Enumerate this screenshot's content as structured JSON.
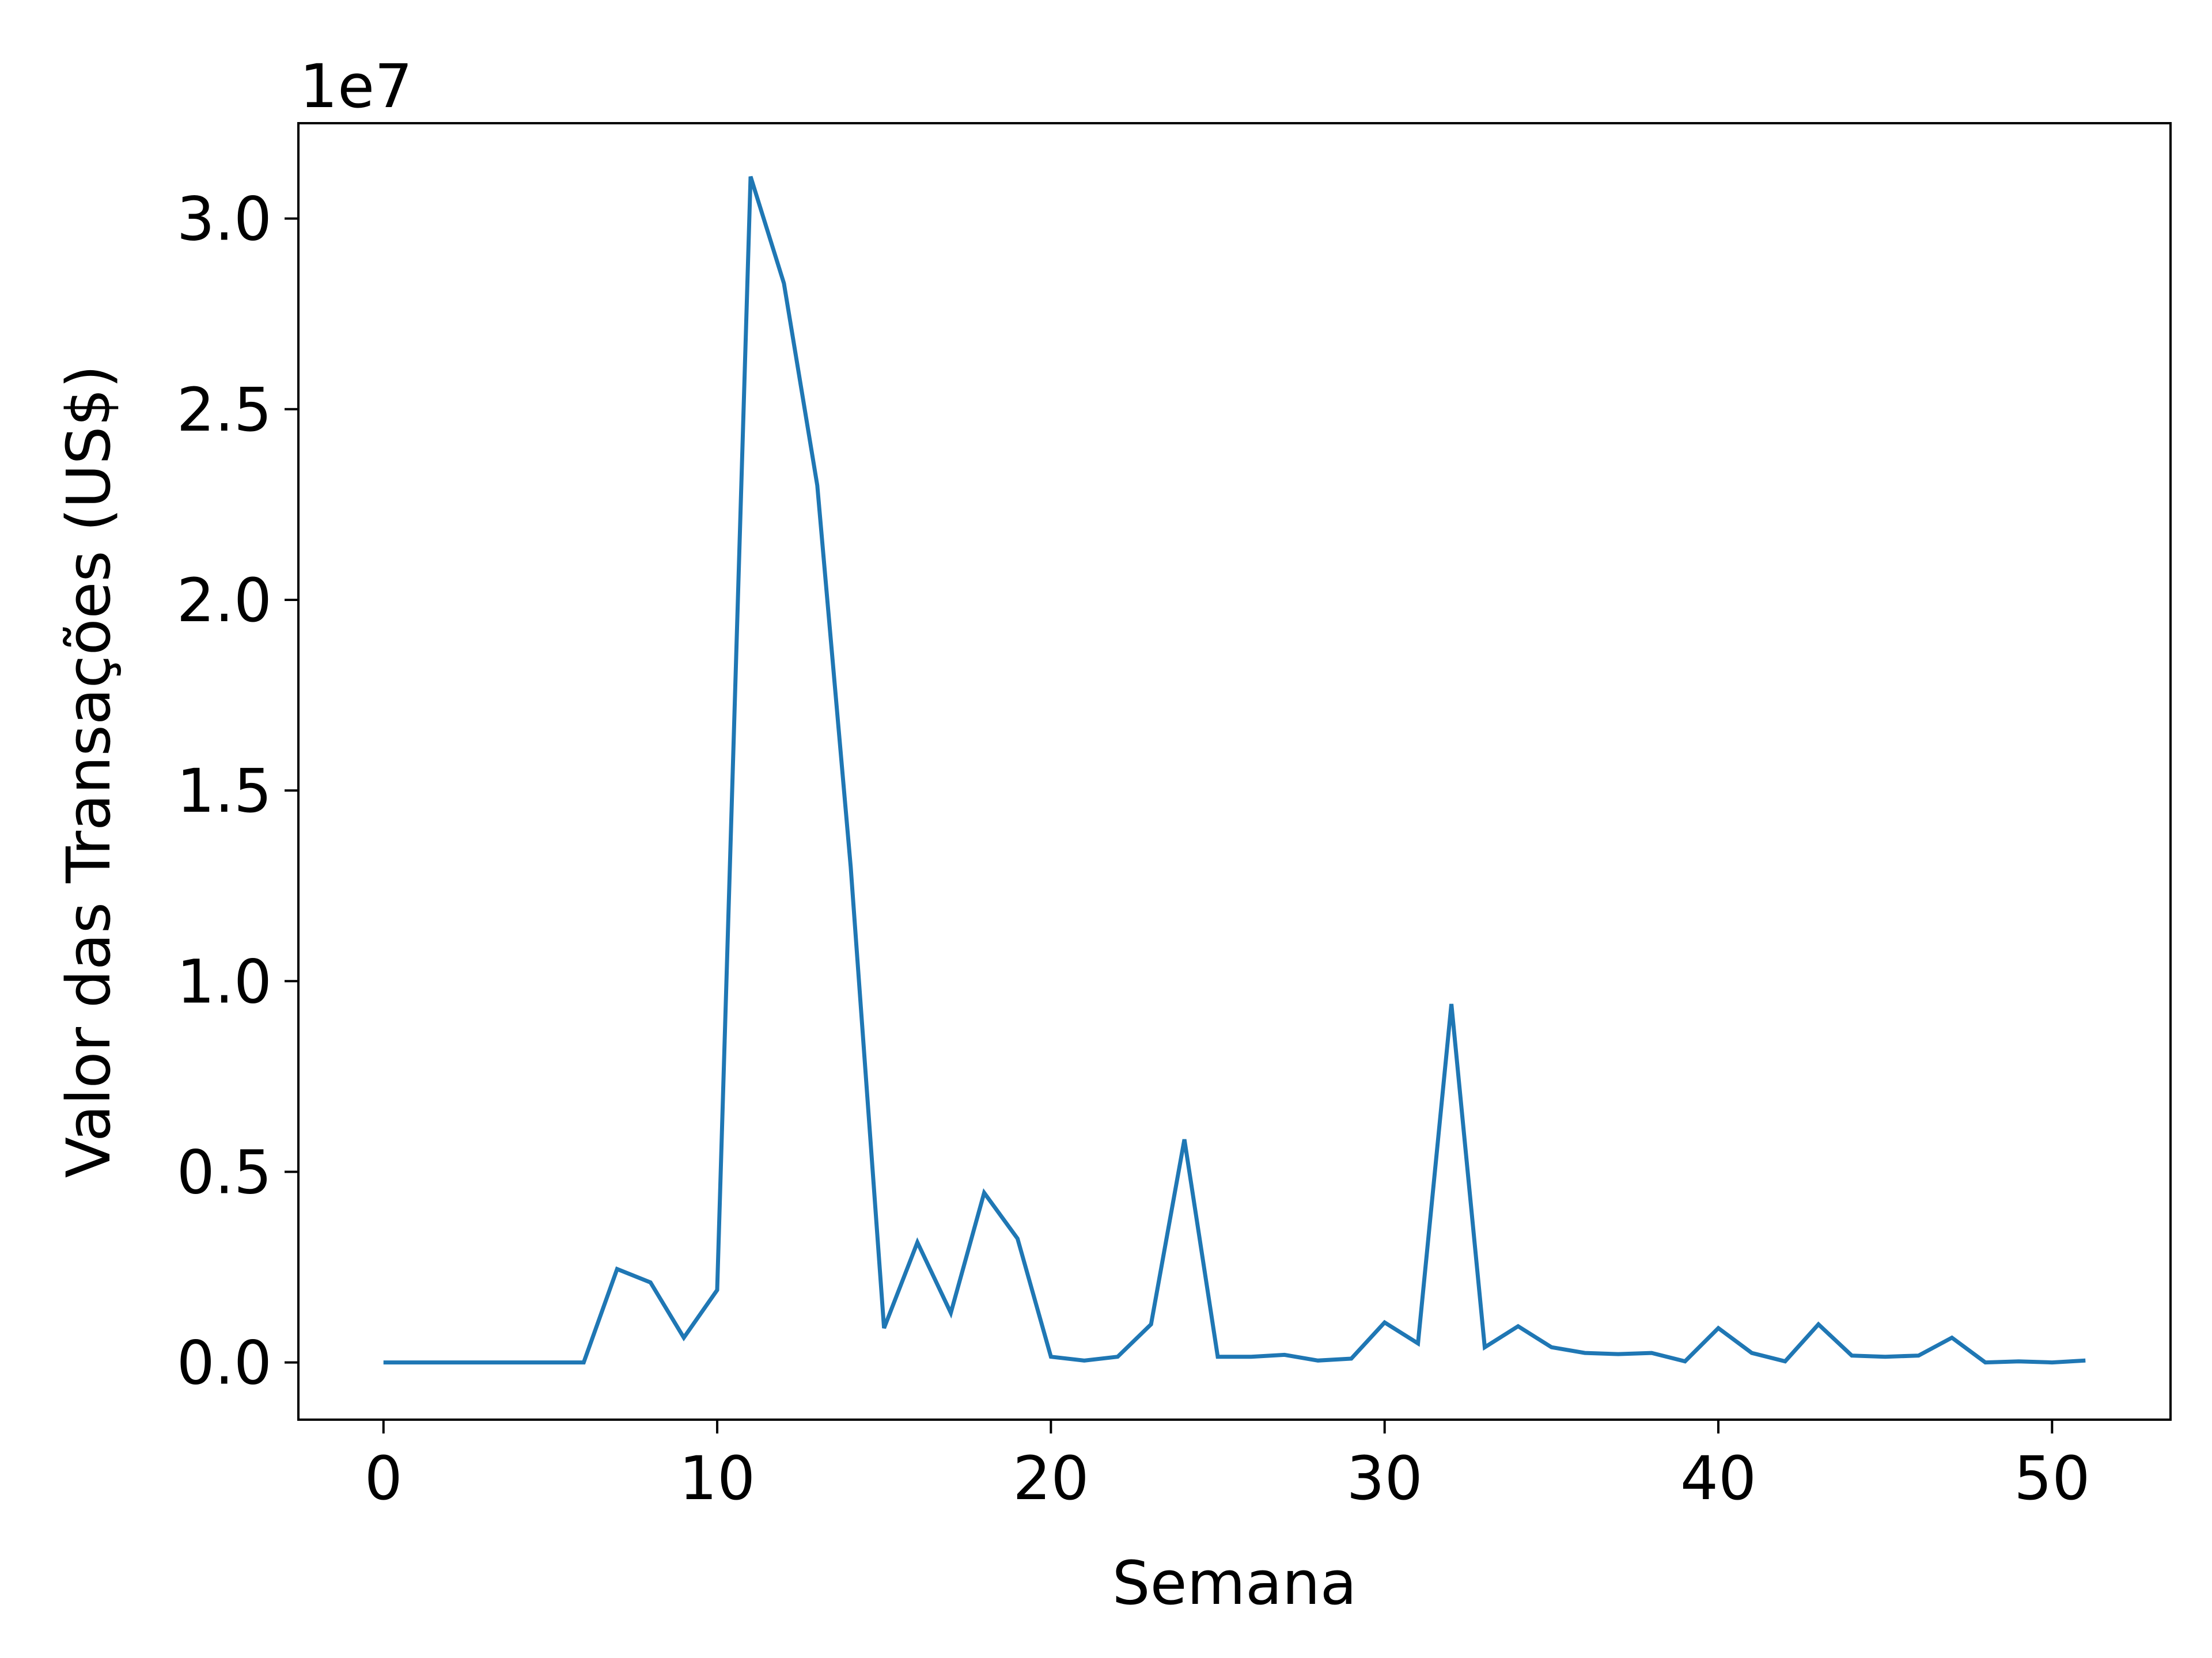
{
  "chart_data": {
    "type": "line",
    "title": "",
    "xlabel": "Semana",
    "ylabel": "Valor das Transações (US$)",
    "y_offset_label": "1e7",
    "xlim": [
      -2.55,
      53.55
    ],
    "ylim": [
      -0.15,
      3.25
    ],
    "y_scale_multiplier": 10000000,
    "x_ticks": [
      0,
      10,
      20,
      30,
      40,
      50
    ],
    "x_tick_labels": [
      "0",
      "10",
      "20",
      "30",
      "40",
      "50"
    ],
    "y_ticks": [
      0.0,
      0.5,
      1.0,
      1.5,
      2.0,
      2.5,
      3.0
    ],
    "y_tick_labels": [
      "0.0",
      "0.5",
      "1.0",
      "1.5",
      "2.0",
      "2.5",
      "3.0"
    ],
    "grid": false,
    "line_color": "#1f77b4",
    "series": [
      {
        "x": [
          0,
          1,
          2,
          3,
          4,
          5,
          6,
          7,
          8,
          9,
          10,
          11,
          12,
          13,
          14,
          15,
          16,
          17,
          18,
          19,
          20,
          21,
          22,
          23,
          24,
          25,
          26,
          27,
          28,
          29,
          30,
          31,
          32,
          33,
          34,
          35,
          36,
          37,
          38,
          39,
          40,
          41,
          42,
          43,
          44,
          45,
          46,
          47,
          48,
          49,
          50,
          51
        ],
        "values": [
          0,
          0,
          0,
          0,
          0,
          0,
          0,
          0.245,
          0.21,
          0.065,
          0.19,
          3.11,
          2.83,
          2.3,
          1.3,
          0.09,
          0.315,
          0.13,
          0.445,
          0.325,
          0.015,
          0.005,
          0.015,
          0.1,
          0.585,
          0.015,
          0.015,
          0.02,
          0.005,
          0.01,
          0.105,
          0.05,
          0.94,
          0.04,
          0.095,
          0.04,
          0.025,
          0.022,
          0.025,
          0.003,
          0.09,
          0.025,
          0.003,
          0.1,
          0.018,
          0.015,
          0.018,
          0.065,
          0,
          0.003,
          0,
          0.005
        ]
      }
    ]
  }
}
